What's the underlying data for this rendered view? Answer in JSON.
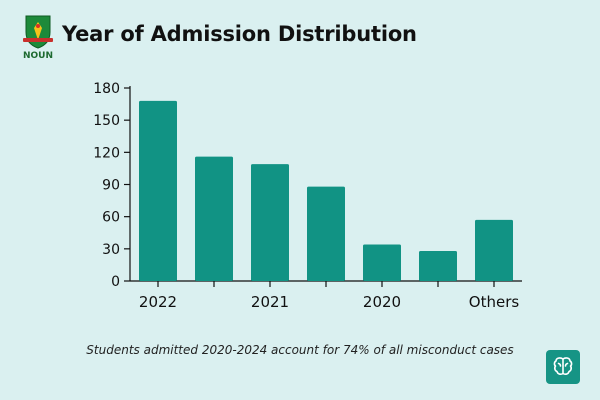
{
  "header": {
    "title": "Year of Admission Distribution",
    "logo_text": "NOUN"
  },
  "chart_data": {
    "type": "bar",
    "title": "Year of Admission Distribution",
    "categories": [
      "2022",
      "",
      "2021",
      "",
      "2020",
      "",
      "Others"
    ],
    "values": [
      168,
      116,
      109,
      88,
      34,
      28,
      57
    ],
    "yticks": [
      0,
      30,
      60,
      90,
      120,
      150,
      180
    ],
    "ylim": [
      0,
      180
    ],
    "xlabel": "",
    "ylabel": "",
    "bar_color": "#119384"
  },
  "footnote": "Students admitted 2020-2024 account for 74% of all misconduct cases",
  "colors": {
    "background": "#daf0f0",
    "bar": "#119384",
    "badge": "#169485"
  }
}
